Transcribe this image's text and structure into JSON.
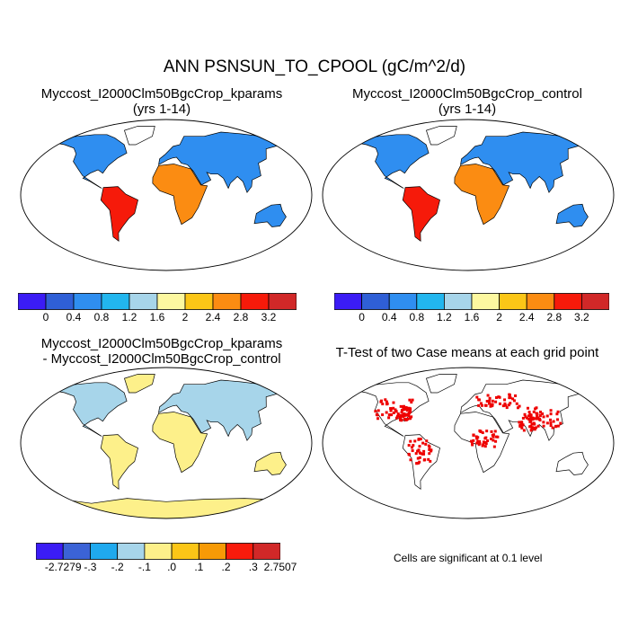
{
  "main_title": "ANN PSNSUN_TO_CPOOL (gC/m^2/d)",
  "panels": {
    "top_left": {
      "title_line1": "Myccost_I2000Clm50BgcCrop_kparams",
      "title_line2": "(yrs 1-14)"
    },
    "top_right": {
      "title_line1": "Myccost_I2000Clm50BgcCrop_control",
      "title_line2": "(yrs 1-14)"
    },
    "bottom_left": {
      "title_line1": "Myccost_I2000Clm50BgcCrop_kparams",
      "title_line2": "- Myccost_I2000Clm50BgcCrop_control"
    },
    "bottom_right": {
      "title_line1": "T-Test of two Case means at each grid point"
    }
  },
  "colorbar_abs": {
    "colors": [
      "#3b1cf5",
      "#2f5fd6",
      "#2f8ef0",
      "#22b6ee",
      "#a7d5ea",
      "#fdf8a0",
      "#fbc617",
      "#fb8c12",
      "#f61a0a",
      "#d12828"
    ],
    "labels": [
      "0",
      "0.4",
      "0.8",
      "1.2",
      "1.6",
      "2",
      "2.4",
      "2.8",
      "3.2"
    ]
  },
  "colorbar_diff": {
    "colors": [
      "#3b1cf5",
      "#3b63d6",
      "#1fa9ee",
      "#a7d5ea",
      "#fdf08a",
      "#fbc617",
      "#f79a06",
      "#f81b0c",
      "#d12828"
    ],
    "labels": [
      "-2.7279",
      "-.3",
      "-.2",
      "-.1",
      ".0",
      ".1",
      ".2",
      ".3",
      "2.7507"
    ]
  },
  "significance_note": "Cells are significant at 0.1 level",
  "colors": {
    "ocean": "#ffffff",
    "coast": "#000000",
    "significant": "#ee0000"
  }
}
